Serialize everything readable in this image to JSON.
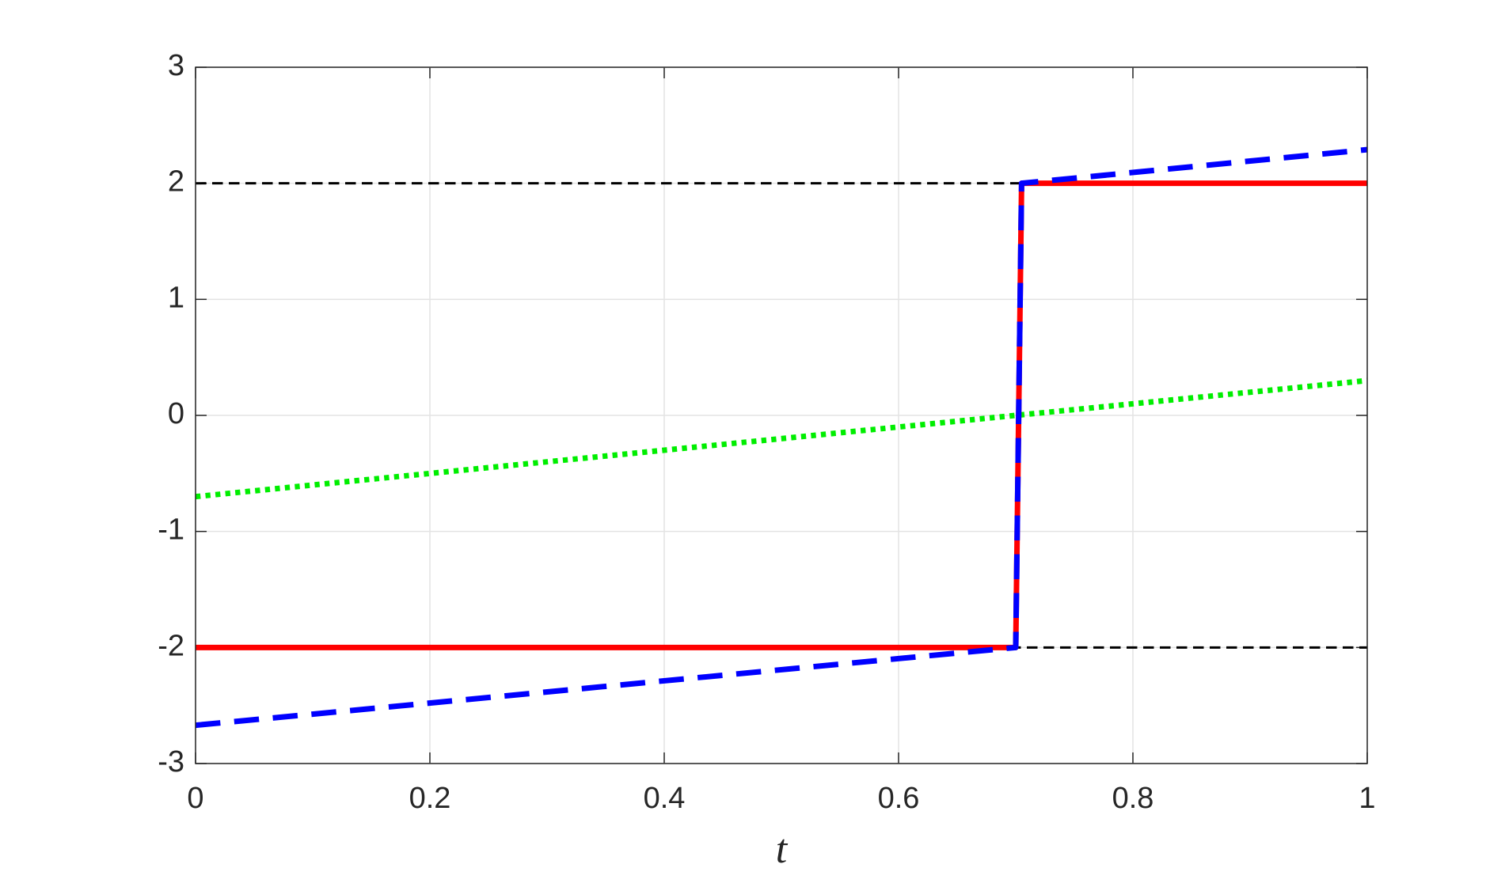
{
  "chart_data": {
    "type": "line",
    "xlabel": "t",
    "xlim": [
      0,
      1
    ],
    "xticks": [
      0,
      0.2,
      0.4,
      0.6,
      0.8,
      1
    ],
    "ylim": [
      -3,
      3
    ],
    "yticks": [
      -3,
      -2,
      -1,
      0,
      1,
      2,
      3
    ],
    "grid": true,
    "series": [
      {
        "color": "#000000",
        "linestyle": "dashed",
        "width": 3,
        "x": [
          0,
          1
        ],
        "values": [
          2,
          2
        ]
      },
      {
        "color": "#000000",
        "linestyle": "dashed",
        "width": 3,
        "x": [
          0,
          1
        ],
        "values": [
          -2,
          -2
        ]
      },
      {
        "color": "#00ee00",
        "linestyle": "dotted",
        "width": 7,
        "x": [
          0,
          1
        ],
        "values": [
          -0.7,
          0.3
        ]
      },
      {
        "color": "#ff0000",
        "linestyle": "solid",
        "width": 7,
        "x": [
          0,
          0.7,
          0.705,
          1
        ],
        "values": [
          -2,
          -2,
          2,
          2
        ]
      },
      {
        "color": "#0000ff",
        "linestyle": "dashed",
        "width": 7,
        "x": [
          0,
          0.7,
          0.705,
          1
        ],
        "values": [
          -2.67,
          -2,
          2,
          2.29
        ]
      }
    ]
  }
}
